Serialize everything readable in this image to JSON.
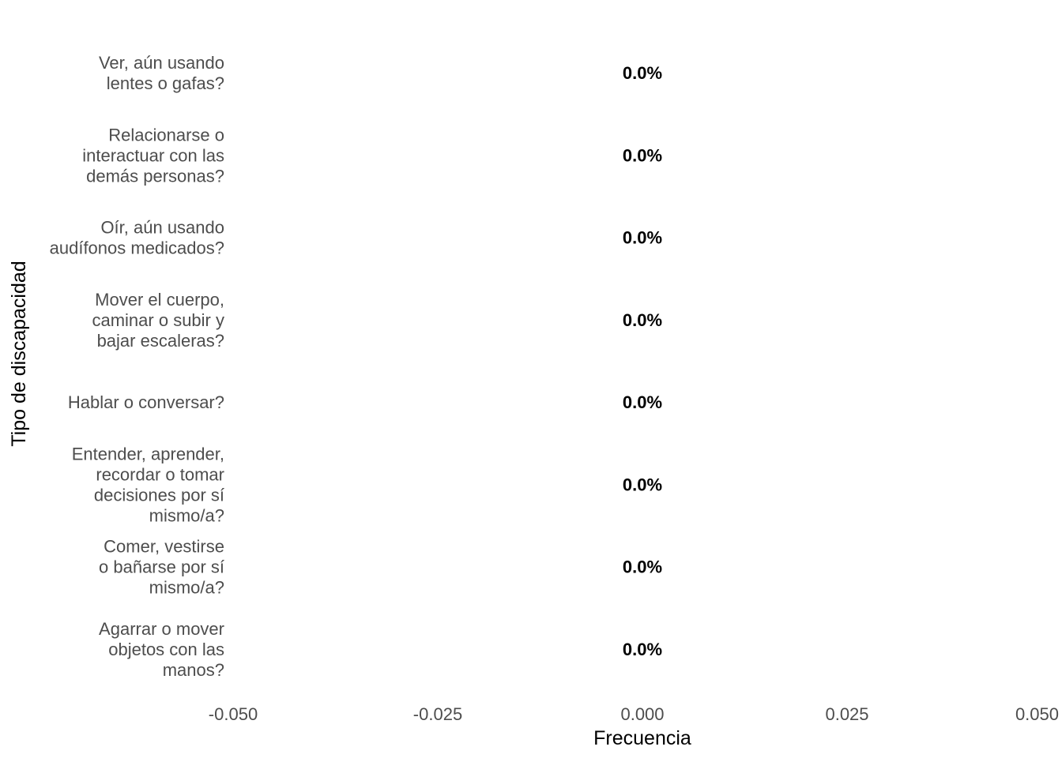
{
  "chart_data": {
    "type": "bar",
    "orientation": "horizontal",
    "categories": [
      [
        "Ver, aún usando",
        "lentes o gafas?"
      ],
      [
        "Relacionarse o",
        "interactuar con las",
        "demás personas?"
      ],
      [
        "Oír, aún usando",
        "audífonos medicados?"
      ],
      [
        "Mover el cuerpo,",
        "caminar o subir y",
        "bajar escaleras?"
      ],
      [
        "Hablar o conversar?"
      ],
      [
        "Entender, aprender,",
        "recordar o tomar",
        "decisiones por sí",
        "mismo/a?"
      ],
      [
        "Comer, vestirse",
        "o bañarse por sí",
        "mismo/a?"
      ],
      [
        "Agarrar o mover",
        "objetos con las",
        "manos?"
      ]
    ],
    "values": [
      0,
      0,
      0,
      0,
      0,
      0,
      0,
      0
    ],
    "data_labels": [
      "0.0%",
      "0.0%",
      "0.0%",
      "0.0%",
      "0.0%",
      "0.0%",
      "0.0%",
      "0.0%"
    ],
    "xlabel": "Frecuencia",
    "ylabel": "Tipo de discapacidad",
    "xlim": [
      -0.05,
      0.05
    ],
    "x_ticks": [
      -0.05,
      -0.025,
      0,
      0.025,
      0.05
    ],
    "x_tick_labels": [
      "-0.050",
      "-0.025",
      "0.000",
      "0.025",
      "0.050"
    ],
    "grid": false,
    "bar_color": "#4d4d4d"
  }
}
